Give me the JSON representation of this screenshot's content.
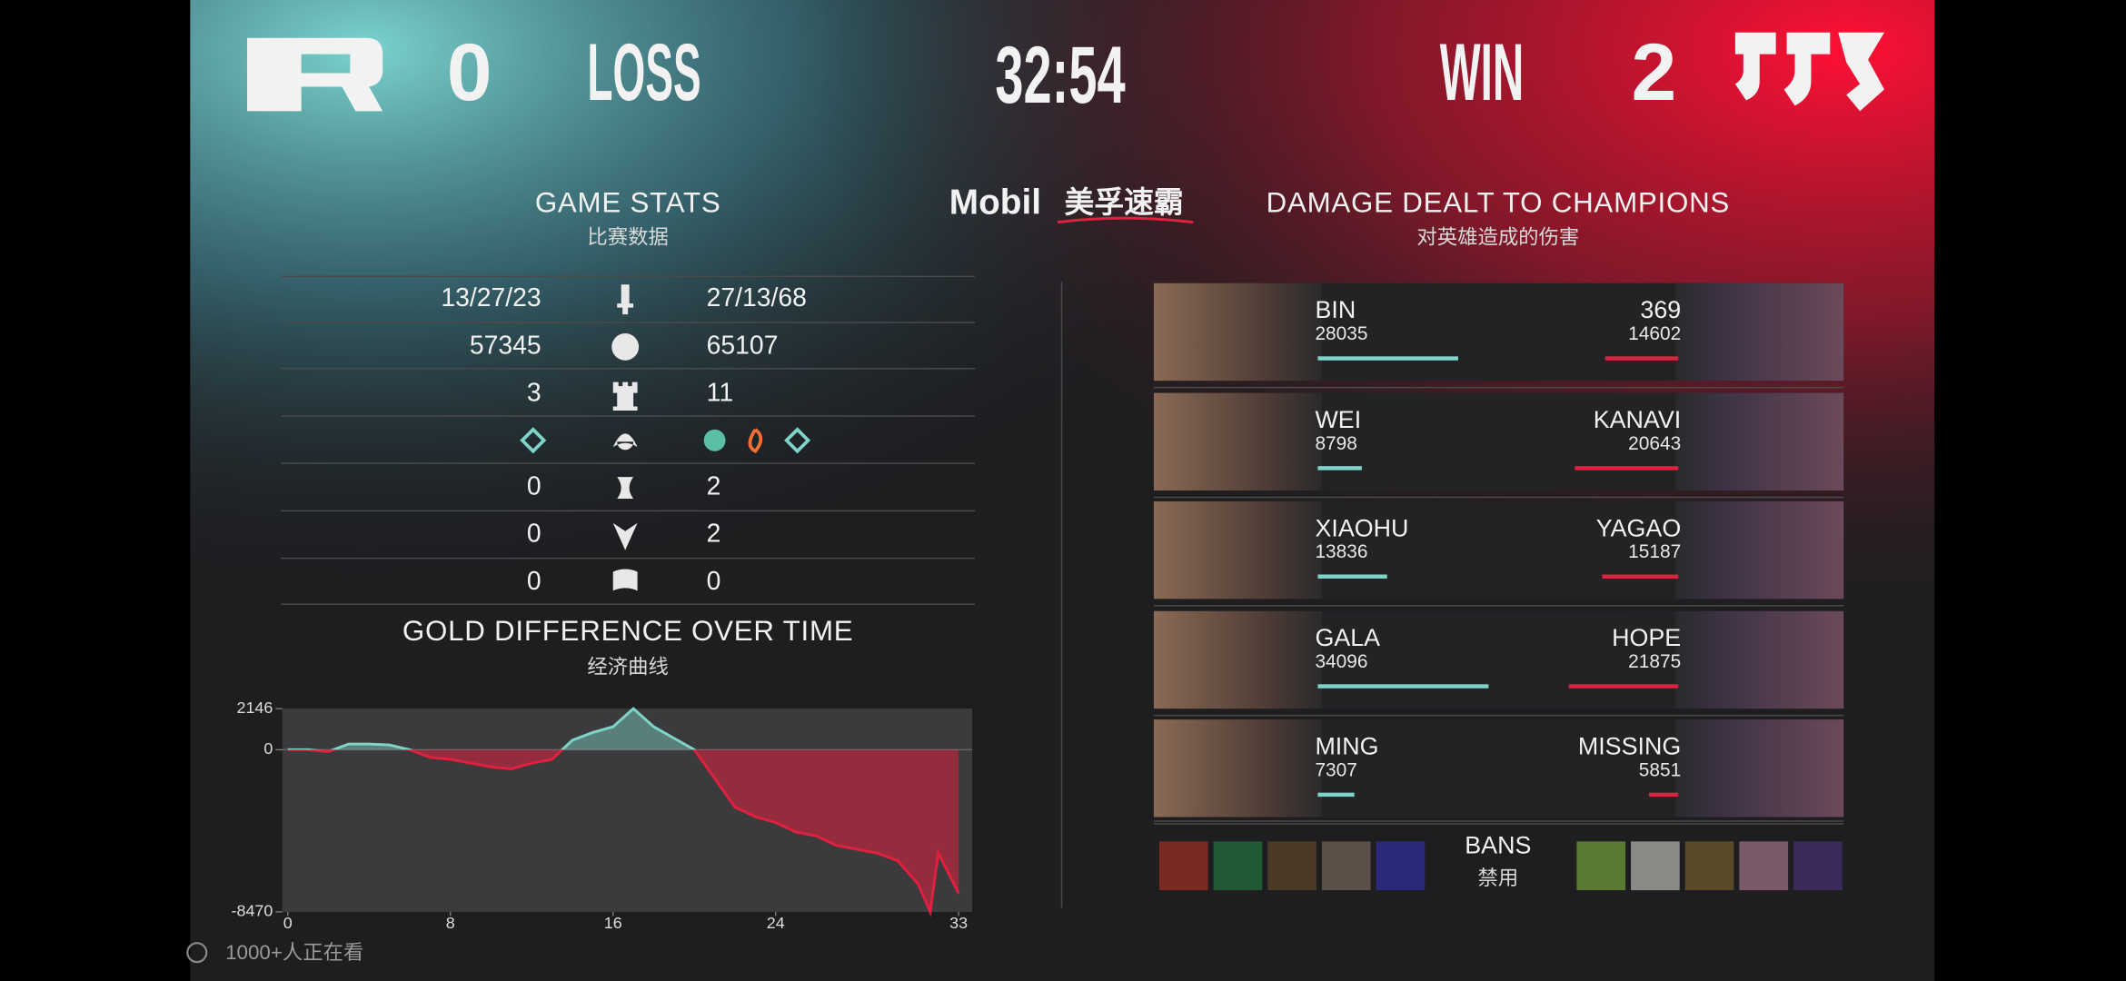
{
  "header": {
    "left_score": "0",
    "left_result": "LOSS",
    "timer": "32:54",
    "right_result": "WIN",
    "right_score": "2"
  },
  "sponsor": {
    "brand": "Mobil",
    "product": "美孚速霸"
  },
  "game_stats": {
    "title": "GAME STATS",
    "subtitle": "比赛数据",
    "rows": [
      {
        "left": "13/27/23",
        "right": "27/13/68"
      },
      {
        "left": 57345,
        "right": 65107
      },
      {
        "left": 3,
        "right": 11
      },
      {
        "left": 0,
        "right": 2
      },
      {
        "left": 0,
        "right": 2
      },
      {
        "left": 0,
        "right": 0
      }
    ]
  },
  "chart_data": {
    "type": "line",
    "title": "GOLD DIFFERENCE OVER TIME",
    "subtitle": "经济曲线",
    "x": [
      0,
      1,
      2,
      3,
      4,
      5,
      6,
      7,
      8,
      9,
      10,
      11,
      12,
      13,
      14,
      15,
      16,
      17,
      18,
      19,
      20,
      21,
      22,
      23,
      24,
      25,
      26,
      27,
      28,
      29,
      30,
      31,
      31.6,
      32,
      33
    ],
    "values": [
      0,
      0,
      -100,
      300,
      300,
      250,
      0,
      -400,
      -500,
      -700,
      -900,
      -1000,
      -700,
      -500,
      500,
      900,
      1200,
      2146,
      1200,
      600,
      0,
      -1500,
      -3000,
      -3500,
      -3800,
      -4300,
      -4500,
      -5000,
      -5200,
      -5400,
      -5800,
      -7000,
      -8470,
      -5400,
      -7500
    ],
    "color_positive": "#7fd3c8",
    "color_negative": "#e0203f",
    "xlim": [
      0,
      33.6
    ],
    "ylim": [
      -8470,
      2146
    ],
    "xticks": [
      0,
      8,
      16,
      24,
      33
    ],
    "yticks": [
      2146,
      0,
      -8470
    ]
  },
  "damage": {
    "title": "DAMAGE DEALT TO CHAMPIONS",
    "subtitle": "对英雄造成的伤害",
    "color_left": "#7fd3c8",
    "color_right": "#e0203f",
    "left": [
      {
        "name": "BIN",
        "value": 28035
      },
      {
        "name": "WEI",
        "value": 8798
      },
      {
        "name": "XIAOHU",
        "value": 13836
      },
      {
        "name": "GALA",
        "value": 34096
      },
      {
        "name": "MING",
        "value": 7307
      }
    ],
    "right": [
      {
        "name": "369",
        "value": 14602
      },
      {
        "name": "KANAVI",
        "value": 20643
      },
      {
        "name": "YAGAO",
        "value": 15187
      },
      {
        "name": "HOPE",
        "value": 21875
      },
      {
        "name": "MISSING",
        "value": 5851
      }
    ]
  },
  "bans": {
    "title": "BANS",
    "subtitle": "禁用"
  },
  "viewers": "1000+人正在看"
}
